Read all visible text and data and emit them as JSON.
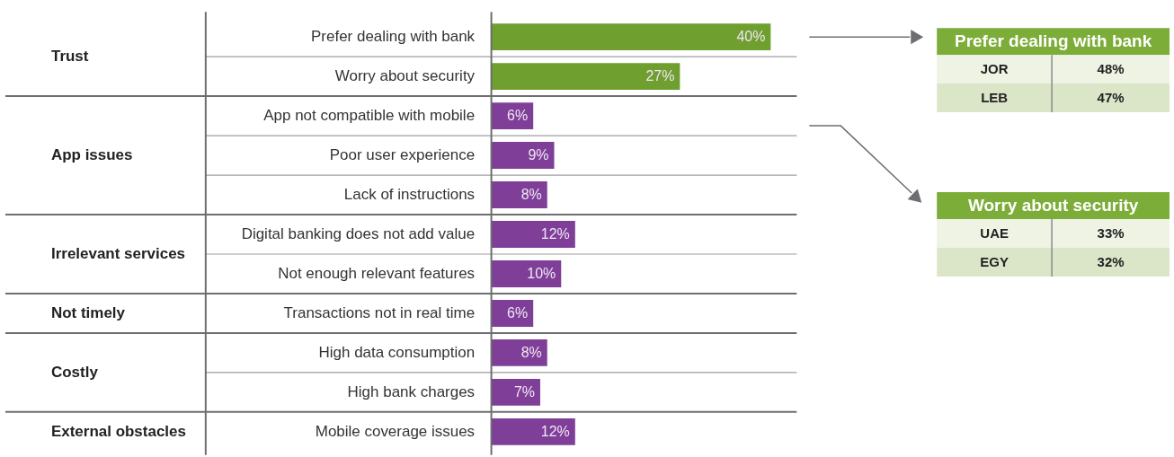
{
  "chart_data": [
    {
      "type": "bar",
      "orientation": "horizontal",
      "categories": [
        "Prefer dealing with bank",
        "Worry about security",
        "App not compatible with mobile",
        "Poor user experience",
        "Lack of instructions",
        "Digital banking does not add value",
        "Not enough relevant features",
        "Transactions not in real time",
        "High data consumption",
        "High bank charges",
        "Mobile coverage issues"
      ],
      "values": [
        40,
        27,
        6,
        9,
        8,
        12,
        10,
        6,
        8,
        7,
        12
      ],
      "value_labels": [
        "40%",
        "27%",
        "6%",
        "9%",
        "8%",
        "12%",
        "10%",
        "6%",
        "8%",
        "7%",
        "12%"
      ],
      "colors": [
        "#6e9f2f",
        "#6e9f2f",
        "#7f3f98",
        "#7f3f98",
        "#7f3f98",
        "#7f3f98",
        "#7f3f98",
        "#7f3f98",
        "#7f3f98",
        "#7f3f98",
        "#7f3f98"
      ],
      "annotations": [
        "Trust",
        "App issues",
        "Irrelevant services",
        "Not timely",
        "Costly",
        "External obstacles"
      ]
    },
    {
      "type": "other",
      "title": "Prefer dealing with bank",
      "annotations": [
        "JOR",
        "48%",
        "LEB",
        "47%"
      ]
    },
    {
      "type": "other",
      "title": "Worry about security",
      "annotations": [
        "UAE",
        "33%",
        "EGY",
        "32%"
      ]
    }
  ]
}
